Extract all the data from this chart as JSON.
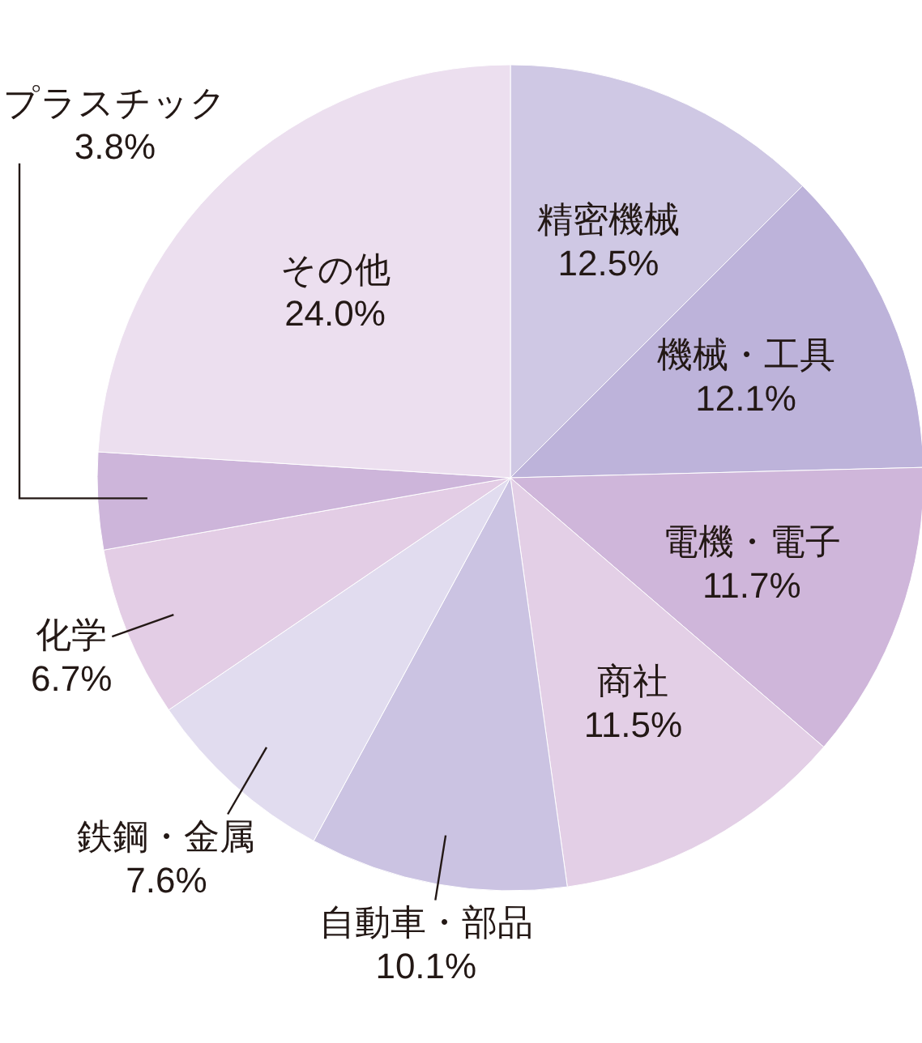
{
  "chart_data": {
    "type": "pie",
    "categories": [
      "精密機械",
      "機械・工具",
      "電機・電子",
      "商社",
      "自動車・部品",
      "鉄鋼・金属",
      "化学",
      "プラスチック",
      "その他"
    ],
    "values": [
      12.5,
      12.1,
      11.7,
      11.5,
      10.1,
      7.6,
      6.7,
      3.8,
      24.0
    ],
    "colors": [
      "#cfc8e4",
      "#bdb3da",
      "#cfb6da",
      "#e3cfe6",
      "#cbc3e2",
      "#e1dcef",
      "#e3cde5",
      "#cdb5da",
      "#ecdfef"
    ],
    "value_labels": [
      "12.5%",
      "12.1%",
      "11.7%",
      "11.5%",
      "10.1%",
      "7.6%",
      "6.7%",
      "3.8%",
      "24.0%"
    ]
  }
}
